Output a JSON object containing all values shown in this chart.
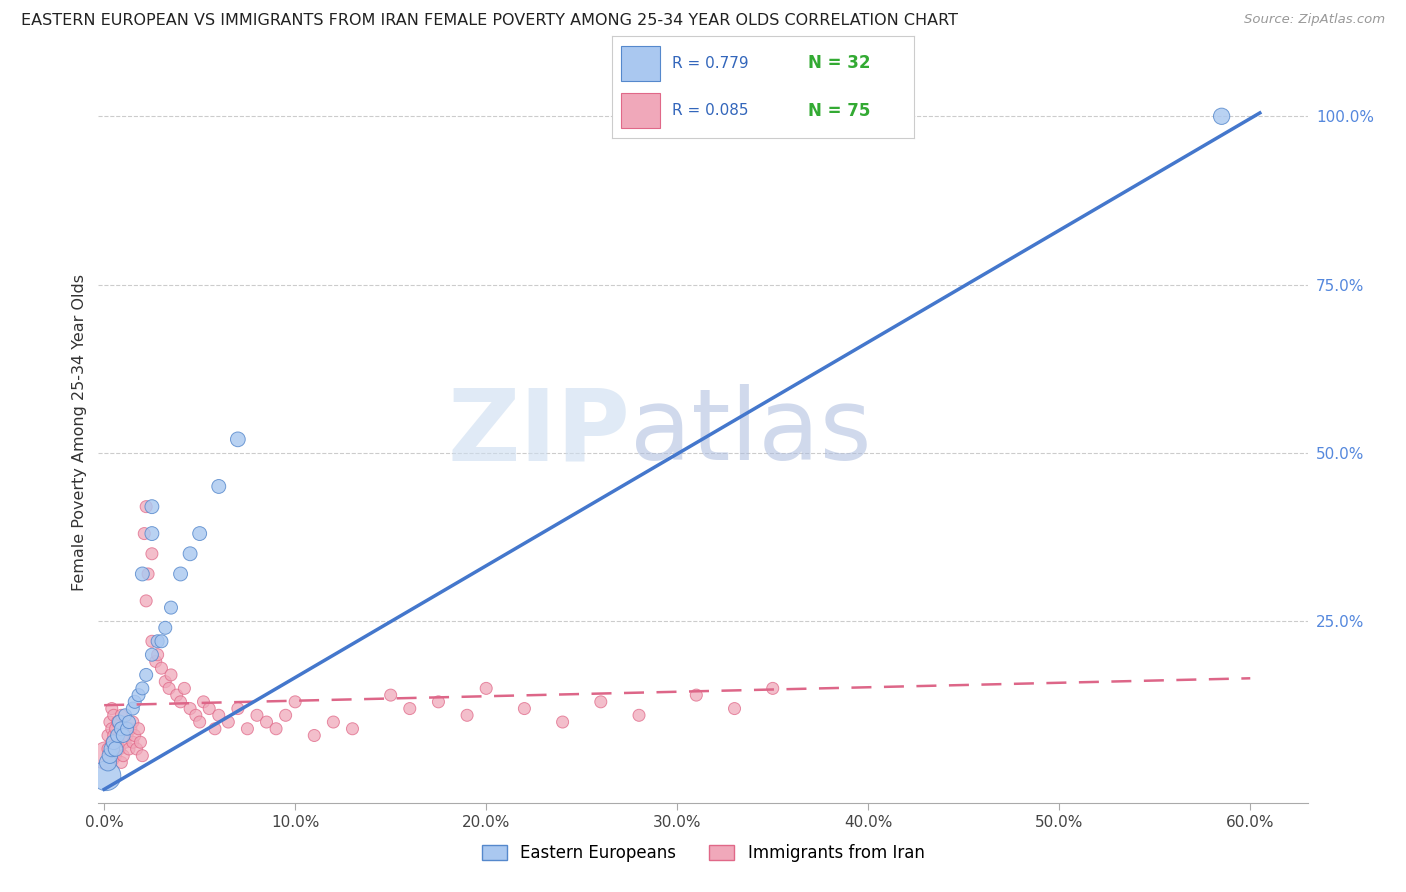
{
  "title": "EASTERN EUROPEAN VS IMMIGRANTS FROM IRAN FEMALE POVERTY AMONG 25-34 YEAR OLDS CORRELATION CHART",
  "source": "Source: ZipAtlas.com",
  "ylabel": "Female Poverty Among 25-34 Year Olds",
  "right_ytick_labels": [
    "100.0%",
    "75.0%",
    "50.0%",
    "25.0%"
  ],
  "right_ytick_vals": [
    1.0,
    0.75,
    0.5,
    0.25
  ],
  "ylim": [
    -0.02,
    1.08
  ],
  "xlim": [
    -0.003,
    0.63
  ],
  "xtick_vals": [
    0.0,
    0.1,
    0.2,
    0.3,
    0.4,
    0.5,
    0.6
  ],
  "xtick_labels": [
    "0.0%",
    "10.0%",
    "20.0%",
    "30.0%",
    "40.0%",
    "50.0%",
    "60.0%"
  ],
  "watermark_zip": "ZIP",
  "watermark_atlas": "atlas",
  "legend1_R": "0.779",
  "legend1_N": "32",
  "legend2_R": "0.085",
  "legend2_N": "75",
  "color_blue": "#aac8f0",
  "color_pink": "#f0a8ba",
  "edge_blue": "#5588cc",
  "edge_pink": "#e06888",
  "line_blue_color": "#4477cc",
  "line_pink_color": "#dd6688",
  "grid_color": "#cccccc",
  "bg_color": "#ffffff",
  "blue_line_x0": 0.0,
  "blue_line_y0": 0.0,
  "blue_line_x1": 0.605,
  "blue_line_y1": 1.005,
  "pink_line_x0": 0.0,
  "pink_line_y0": 0.125,
  "pink_line_x1": 0.6,
  "pink_line_y1": 0.165
}
